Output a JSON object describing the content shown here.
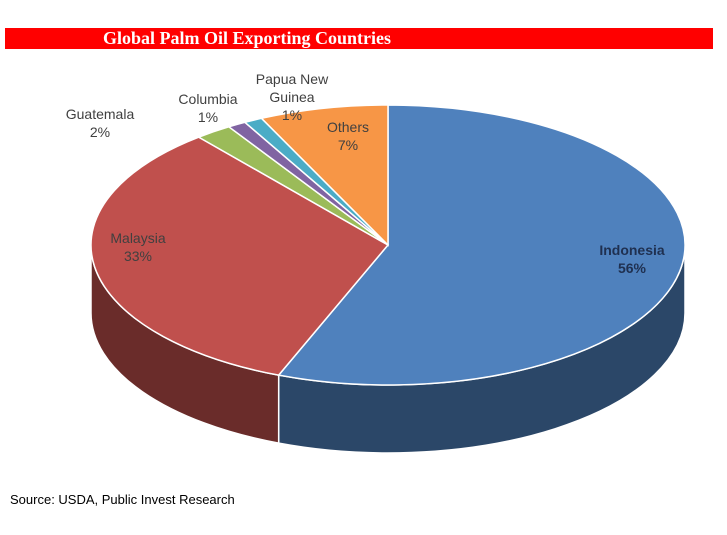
{
  "chart_data": {
    "type": "pie",
    "title": "Global Palm Oil Exporting Countries",
    "categories": [
      "Indonesia",
      "Malaysia",
      "Guatemala",
      "Columbia",
      "Papua New Guinea",
      "Others"
    ],
    "values": [
      56,
      33,
      2,
      1,
      1,
      7
    ],
    "value_labels": [
      "56%",
      "33%",
      "2%",
      "1%",
      "1%",
      "7%"
    ],
    "colors": [
      "#4f81bd",
      "#c0504d",
      "#9bbb59",
      "#8064a2",
      "#4bacc6",
      "#f79646"
    ],
    "source": "Source: USDA, Public Invest Research"
  }
}
